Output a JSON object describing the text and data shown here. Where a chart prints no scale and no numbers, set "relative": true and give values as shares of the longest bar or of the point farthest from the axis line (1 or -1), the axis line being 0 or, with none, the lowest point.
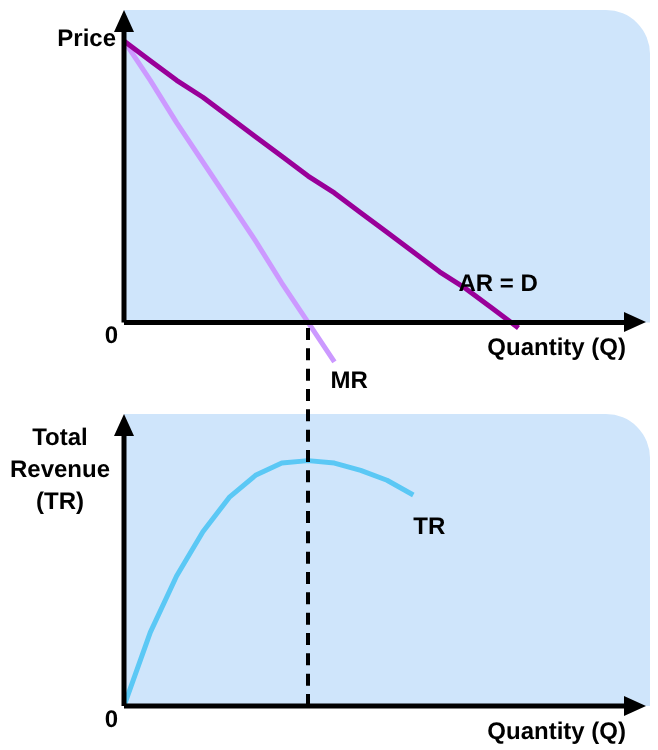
{
  "chart_data": [
    {
      "type": "line",
      "relative": true,
      "ylabel": "Price",
      "xlabel": "Quantity (Q)",
      "annotations": [
        "0"
      ],
      "legend": false,
      "grid": false,
      "tick_labels": false,
      "marker": "none",
      "categories": [
        null,
        null,
        null,
        null,
        null,
        null,
        null,
        null,
        null,
        null,
        null,
        null,
        null,
        null,
        null,
        null,
        null,
        null,
        null,
        null,
        null
      ],
      "series": [
        {
          "name": "AR = D",
          "color": "#990099",
          "values": [
            1,
            0.93,
            0.86,
            0.8,
            0.73,
            0.66,
            0.59,
            0.52,
            0.46,
            0.39,
            0.32,
            0.25,
            0.18,
            0.12,
            0.05,
            -0.02,
            null,
            null,
            null,
            null,
            null
          ]
        },
        {
          "name": "MR",
          "color": "#cc99ff",
          "values": [
            1,
            0.86,
            0.71,
            0.57,
            0.43,
            0.29,
            0.14,
            0,
            -0.14,
            null,
            null,
            null,
            null,
            null,
            null,
            null,
            null,
            null,
            null,
            null,
            null
          ]
        }
      ]
    },
    {
      "type": "line",
      "relative": true,
      "ylabel": "Total Revenue (TR)",
      "xlabel": "Quantity (Q)",
      "annotations": [
        "0"
      ],
      "legend": false,
      "grid": false,
      "tick_labels": false,
      "marker": "none",
      "categories": [
        null,
        null,
        null,
        null,
        null,
        null,
        null,
        null,
        null,
        null,
        null,
        null,
        null,
        null,
        null,
        null,
        null,
        null,
        null,
        null,
        null
      ],
      "series": [
        {
          "name": "TR",
          "color": "#5bc8f5",
          "values": [
            0,
            0.3,
            0.53,
            0.71,
            0.85,
            0.94,
            0.99,
            1,
            0.99,
            0.96,
            0.92,
            0.86,
            null,
            null,
            null,
            null,
            null,
            null,
            null,
            null,
            null
          ]
        }
      ]
    }
  ]
}
